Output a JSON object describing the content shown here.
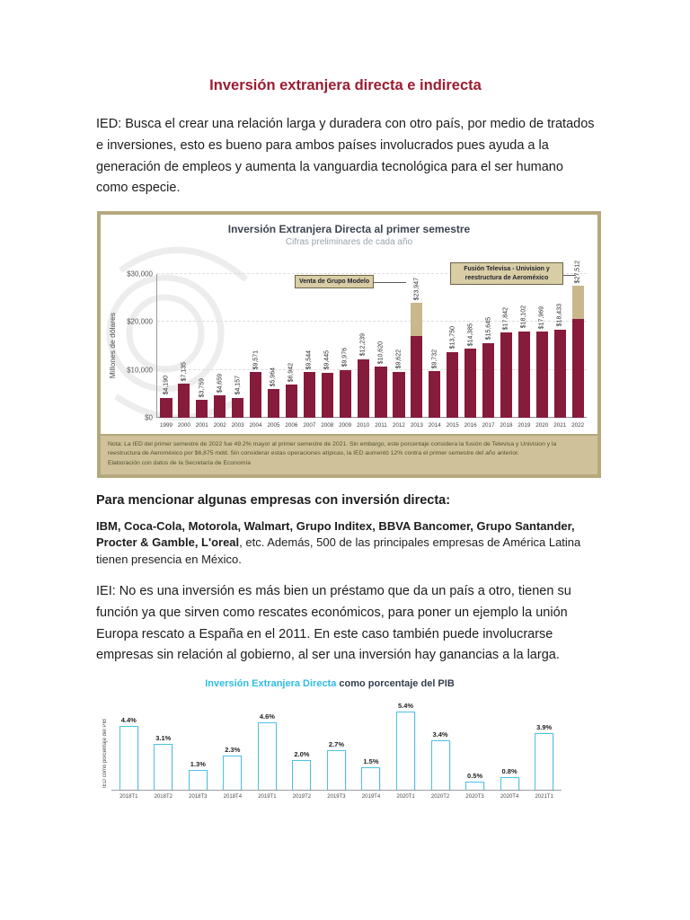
{
  "doc": {
    "title": "Inversión extranjera directa e indirecta",
    "ied_paragraph": "IED: Busca el crear una relación larga y duradera con otro país, por medio de tratados e inversiones, esto es bueno para ambos países involucrados pues ayuda a la generación de empleos y aumenta la vanguardia tecnológica para el ser humano como especie.",
    "companies_intro": "Para mencionar algunas empresas con inversión directa:",
    "companies_bold": "IBM, Coca-Cola, Motorola, Walmart, Grupo Inditex, BBVA Bancomer, Grupo Santander, Procter & Gamble, L'oreal",
    "companies_rest": ", etc. Además, 500 de las principales empresas de América Latina tienen presencia en México.",
    "iei_paragraph": "IEI: No es una inversión es más bien un préstamo que da un país a otro, tienen su función ya que sirven como rescates económicos, para poner un ejemplo la unión Europa rescato a España en el 2011. En este caso también puede involucrarse empresas sin relación al gobierno, al ser una inversión hay ganancias a la larga."
  },
  "colors": {
    "doc_title": "#9b1c31",
    "bar_main": "#871b3c",
    "bar_atypical": "#c8b88c",
    "chart_frame": "#b6a87d",
    "chart2_accent": "#2ebde4"
  },
  "chart_data": [
    {
      "type": "bar",
      "title": "Inversión Extranjera Directa al primer semestre",
      "subtitle": "Cifras preliminares de cada año",
      "ylabel": "Millones de dólares",
      "ylim": [
        0,
        30000
      ],
      "yticks": [
        0,
        10000,
        20000,
        30000
      ],
      "ytick_labels": [
        "$0",
        "$10,000",
        "$20,000",
        "$30,000"
      ],
      "categories": [
        "1999",
        "2000",
        "2001",
        "2002",
        "2003",
        "2004",
        "2005",
        "2006",
        "2007",
        "2008",
        "2009",
        "2010",
        "2011",
        "2012",
        "2013",
        "2014",
        "2015",
        "2016",
        "2017",
        "2018",
        "2019",
        "2020",
        "2021",
        "2022"
      ],
      "series": [
        {
          "name": "IED",
          "color": "#871b3c",
          "values": [
            4190,
            7135,
            3759,
            4659,
            4157,
            9571,
            5964,
            6942,
            9544,
            9445,
            9976,
            12239,
            10620,
            9622,
            17000,
            9732,
            13750,
            14385,
            15645,
            17842,
            18102,
            17969,
            18433,
            20637
          ]
        },
        {
          "name": "Operaciones atípicas",
          "color": "#c8b88c",
          "values": [
            0,
            0,
            0,
            0,
            0,
            0,
            0,
            0,
            0,
            0,
            0,
            0,
            0,
            0,
            6947,
            0,
            0,
            0,
            0,
            0,
            0,
            0,
            0,
            6875
          ]
        }
      ],
      "bar_labels": [
        "$4,190",
        "$7,135",
        "$3,759",
        "$4,659",
        "$4,157",
        "$9,571",
        "$5,964",
        "$6,942",
        "$9,544",
        "$9,445",
        "$9,976",
        "$12,239",
        "$10,620",
        "$9,622",
        "$23,947",
        "$9,732",
        "$13,750",
        "$14,385",
        "$15,645",
        "$17,842",
        "$18,102",
        "$17,969",
        "$18,433",
        "$27,512"
      ],
      "annotations": [
        {
          "text": "Venta de Grupo Modelo",
          "target": "2013"
        },
        {
          "text": "Fusión Televisa - Univision y reestructura de Aeroméxico",
          "target": "2022"
        }
      ],
      "note": "Nota: La IED del primer semestre de 2022 fue 49.2% mayor al primer semestre de 2021. Sin embargo, este porcentaje considera la fusión de Televisa y Univision y la reestructura de Aeroméxico por $6,875 mdd. Sin considerar estas operaciones atípicas, la IED aumentó 12% contra el primer semestre del año anterior.",
      "source": "Elaboración con datos de la Secretaría de Economía",
      "legend_position": "none",
      "grid": true
    },
    {
      "type": "bar",
      "title_highlight": "Inversión Extranjera Directa",
      "title_rest": " como porcentaje del PIB",
      "ylabel": "IED como porcentaje del PIB",
      "ylim": [
        0,
        6
      ],
      "categories": [
        "2018T1",
        "2018T2",
        "2018T3",
        "2018T4",
        "2019T1",
        "2019T2",
        "2019T3",
        "2019T4",
        "2020T1",
        "2020T2",
        "2020T3",
        "2020T4",
        "2021T1"
      ],
      "values": [
        4.4,
        3.1,
        1.3,
        2.3,
        4.6,
        2.0,
        2.7,
        1.5,
        5.4,
        3.4,
        0.5,
        0.8,
        3.9
      ],
      "bar_labels": [
        "4.4%",
        "3.1%",
        "1.3%",
        "2.3%",
        "4.6%",
        "2.0%",
        "2.7%",
        "1.5%",
        "5.4%",
        "3.4%",
        "0.5%",
        "0.8%",
        "3.9%"
      ],
      "bar_color": "#fdfeff",
      "bar_border": "#4cc2e6",
      "grid": false,
      "legend_position": "none"
    }
  ]
}
